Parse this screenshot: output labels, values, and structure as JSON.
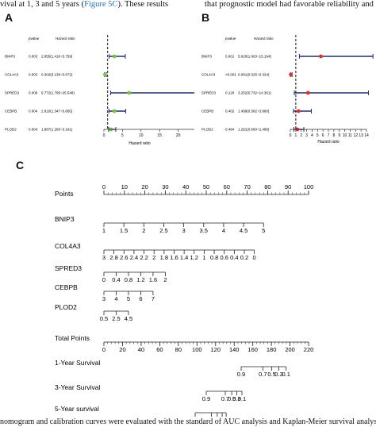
{
  "text_top": {
    "left_prefix": "vival at 1, 3 and 5 years (",
    "left_link": "Figure 5C",
    "left_suffix": "). These results",
    "right": "that prognostic model had favorable reliability and g"
  },
  "panels": {
    "a": "A",
    "b": "B",
    "c": "C"
  },
  "forest_a": {
    "header_pvalue": "pvalue",
    "header_hr": "Hazard ratio",
    "xlabel": "Hazard ratio",
    "xticks": [
      "0",
      "5",
      "10",
      "15",
      "20",
      "25"
    ],
    "rows": [
      {
        "gene": "BNIP3",
        "pvalue": "0.003",
        "hr_text": "2.855(1.416~5.759)",
        "hr": 2.855,
        "lo": 1.416,
        "hi": 5.759,
        "color": "#7ac143"
      },
      {
        "gene": "COL4A3",
        "pvalue": "0.003",
        "hr_text": "0.302(0.136~0.672)",
        "hr": 0.302,
        "lo": 0.136,
        "hi": 0.672,
        "color": "#7ac143"
      },
      {
        "gene": "SPRED3",
        "pvalue": "0.006",
        "hr_text": "6.772(1.795~25.548)",
        "hr": 6.772,
        "lo": 1.795,
        "hi": 25.548,
        "color": "#7ac143"
      },
      {
        "gene": "CEBPB",
        "pvalue": "0.004",
        "hr_text": "2.810(1.347~5.865)",
        "hr": 2.81,
        "lo": 1.347,
        "hi": 5.865,
        "color": "#7ac143"
      },
      {
        "gene": "PLOD2",
        "pvalue": "0.004",
        "hr_text": "1.887(1.260~3.191)",
        "hr": 1.887,
        "lo": 1.26,
        "hi": 3.191,
        "color": "#7ac143"
      }
    ]
  },
  "forest_b": {
    "header_pvalue": "pvalue",
    "header_hr": "Hazard ratio",
    "xlabel": "Hazard ratio",
    "xticks": [
      "0",
      "1",
      "2",
      "3",
      "4",
      "5",
      "6",
      "7",
      "8",
      "9",
      "10",
      "11",
      "12",
      "13",
      "14"
    ],
    "rows": [
      {
        "gene": "BNIP3",
        "pvalue": "0.001",
        "hr_text": "5.620(1.663~15.194)",
        "hr": 5.62,
        "lo": 1.663,
        "hi": 15.194,
        "color": "#e03030"
      },
      {
        "gene": "COL4A3",
        "pvalue": "<0.001",
        "hr_text": "0.091(0.025~0.324)",
        "hr": 0.091,
        "lo": 0.025,
        "hi": 0.324,
        "color": "#e03030"
      },
      {
        "gene": "SPRED3",
        "pvalue": "0.120",
        "hr_text": "3.252(0.732~14.361)",
        "hr": 3.252,
        "lo": 0.732,
        "hi": 14.361,
        "color": "#e03030"
      },
      {
        "gene": "CEBPB",
        "pvalue": "0.402",
        "hr_text": "1.499(0.582~3.860)",
        "hr": 1.499,
        "lo": 0.582,
        "hi": 3.86,
        "color": "#e03030"
      },
      {
        "gene": "PLOD2",
        "pvalue": "0.484",
        "hr_text": "1.291(0.660~2.488)",
        "hr": 1.291,
        "lo": 0.66,
        "hi": 2.488,
        "color": "#e03030"
      }
    ]
  },
  "nomogram": {
    "rows": [
      {
        "label": "Points",
        "ticks": [
          [
            "0",
            0
          ],
          [
            "10",
            10
          ],
          [
            "20",
            20
          ],
          [
            "30",
            30
          ],
          [
            "40",
            40
          ],
          [
            "50",
            50
          ],
          [
            "60",
            60
          ],
          [
            "70",
            70
          ],
          [
            "80",
            80
          ],
          [
            "90",
            90
          ],
          [
            "100",
            100
          ]
        ],
        "minor": true,
        "labels_above": true
      },
      {
        "label": "BNIP3",
        "ticks": [
          [
            "1",
            0
          ],
          [
            "1.5",
            9.75
          ],
          [
            "2",
            19.5
          ],
          [
            "2.5",
            29.25
          ],
          [
            "3",
            39
          ],
          [
            "3.5",
            48.75
          ],
          [
            "4",
            58.5
          ],
          [
            "4.5",
            68.25
          ],
          [
            "5",
            78
          ]
        ],
        "minor": false,
        "labels_above": false
      },
      {
        "label": "COL4A3",
        "ticks": [
          [
            "3",
            0
          ],
          [
            "2.8",
            4.9
          ],
          [
            "2.6",
            9.8
          ],
          [
            "2.4",
            14.7
          ],
          [
            "2.2",
            19.6
          ],
          [
            "2",
            24.5
          ],
          [
            "1.8",
            29.4
          ],
          [
            "1.6",
            34.3
          ],
          [
            "1.4",
            39.2
          ],
          [
            "1.2",
            44.1
          ],
          [
            "1",
            49
          ],
          [
            "0.8",
            53.9
          ],
          [
            "0.6",
            58.8
          ],
          [
            "0.4",
            63.7
          ],
          [
            "0.2",
            68.6
          ],
          [
            "0",
            73.5
          ]
        ],
        "minor": false,
        "labels_above": false
      },
      {
        "label": "SPRED3",
        "ticks": [
          [
            "0",
            0
          ],
          [
            "0.4",
            6
          ],
          [
            "0.8",
            12
          ],
          [
            "1.2",
            18
          ],
          [
            "1.6",
            24
          ],
          [
            "2",
            30
          ]
        ],
        "minor": false,
        "labels_above": false
      },
      {
        "label": "CEBPB",
        "ticks": [
          [
            "3",
            0
          ],
          [
            "4",
            6
          ],
          [
            "5",
            12
          ],
          [
            "6",
            18
          ],
          [
            "7",
            24
          ]
        ],
        "minor": false,
        "labels_above": false
      },
      {
        "label": "PLOD2",
        "ticks": [
          [
            "0.5",
            0
          ],
          [
            "2.5",
            6
          ],
          [
            "4.5",
            12
          ]
        ],
        "minor": false,
        "labels_above": false
      },
      {
        "label": "Total Points",
        "ticks": [
          [
            "0",
            0
          ],
          [
            "20",
            20
          ],
          [
            "40",
            40
          ],
          [
            "60",
            60
          ],
          [
            "80",
            80
          ],
          [
            "100",
            100
          ],
          [
            "120",
            120
          ],
          [
            "140",
            140
          ],
          [
            "160",
            160
          ],
          [
            "180",
            180
          ],
          [
            "200",
            200
          ],
          [
            "220",
            220
          ]
        ],
        "minor": true,
        "labels_above": false
      },
      {
        "label": "1-Year Survival",
        "ticks": [
          [
            "0.9",
            0
          ],
          [
            "0.7",
            6.5
          ],
          [
            "0.5",
            9.2
          ],
          [
            "0.3",
            11.3
          ],
          [
            "0.1",
            13.5
          ]
        ],
        "minor": false,
        "labels_above": false
      },
      {
        "label": "3-Year Survival",
        "ticks": [
          [
            "0.9",
            0
          ],
          [
            "0.7",
            8
          ],
          [
            "0.5",
            10.7
          ],
          [
            "0.3",
            12.8
          ],
          [
            "0.1",
            15
          ]
        ],
        "minor": false,
        "labels_above": false
      },
      {
        "label": "5-Year survival",
        "ticks": [
          [
            "0.9",
            0
          ],
          [
            "0.7",
            8.5
          ],
          [
            "0.5",
            11.6
          ],
          [
            "0.3",
            14.2
          ],
          [
            "0.1",
            16.3
          ]
        ],
        "minor": false,
        "labels_above": false
      }
    ]
  },
  "text_bottom": "nomogram and calibration curves were evaluated with the standard of AUC analysis and Kaplan-Meier survival analysis"
}
